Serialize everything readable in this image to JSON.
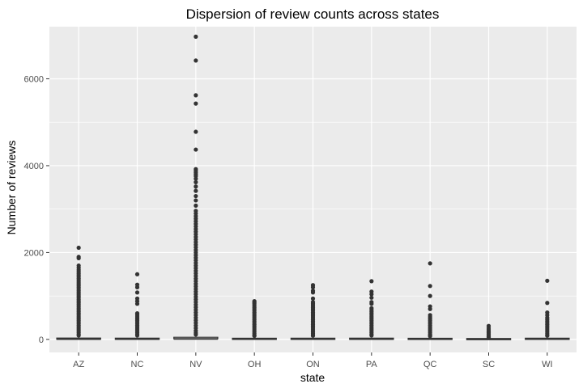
{
  "chart_data": {
    "type": "boxplot",
    "title": "Dispersion of review counts across states",
    "xlabel": "state",
    "ylabel": "Number of reviews",
    "categories": [
      "AZ",
      "NC",
      "NV",
      "OH",
      "ON",
      "PA",
      "QC",
      "SC",
      "WI"
    ],
    "ylim": [
      -300,
      7200
    ],
    "yticks": [
      0,
      2000,
      4000,
      6000
    ],
    "y_tick_labels": [
      "0",
      "2000",
      "4000",
      "6000"
    ],
    "grid": true,
    "legend": "none",
    "colors": {
      "panel_background": "#ebebeb",
      "grid_major": "#ffffff",
      "points": "#333333",
      "box_outline": "#333333"
    },
    "boxes": [
      {
        "state": "AZ",
        "q1": 3,
        "median": 8,
        "q3": 22,
        "outliers": [
          2110,
          1900,
          1870,
          1700,
          1650,
          1600,
          1560,
          1520,
          1480,
          1440,
          1400,
          1360,
          1320,
          1280,
          1240,
          1200,
          1160,
          1120,
          1080,
          1040,
          1000,
          960,
          920,
          880,
          840,
          800,
          760,
          720,
          680,
          640,
          600,
          560,
          520,
          480,
          440,
          400,
          360,
          320,
          280,
          240,
          200,
          160,
          120,
          90
        ]
      },
      {
        "state": "NC",
        "q1": 3,
        "median": 7,
        "q3": 20,
        "outliers": [
          1500,
          1260,
          1200,
          1080,
          940,
          880,
          820,
          600,
          560,
          520,
          480,
          440,
          400,
          360,
          320,
          280,
          240,
          200,
          160,
          120,
          90
        ]
      },
      {
        "state": "NV",
        "q1": 4,
        "median": 12,
        "q3": 40,
        "outliers": [
          6970,
          6420,
          5620,
          5430,
          4780,
          4370,
          3920,
          3880,
          3840,
          3800,
          3760,
          3700,
          3620,
          3520,
          3420,
          3300,
          3200,
          3080,
          2960,
          2900,
          2840,
          2780,
          2720,
          2660,
          2600,
          2540,
          2480,
          2420,
          2360,
          2300,
          2240,
          2180,
          2120,
          2060,
          2000,
          1940,
          1880,
          1820,
          1760,
          1700,
          1640,
          1580,
          1520,
          1460,
          1400,
          1340,
          1280,
          1220,
          1160,
          1100,
          1040,
          980,
          920,
          860,
          800,
          740,
          680,
          620,
          560,
          500,
          440,
          380,
          320,
          260,
          200,
          150,
          110
        ]
      },
      {
        "state": "OH",
        "q1": 3,
        "median": 6,
        "q3": 18,
        "outliers": [
          880,
          850,
          820,
          780,
          740,
          700,
          660,
          620,
          580,
          540,
          500,
          460,
          420,
          380,
          340,
          300,
          260,
          220,
          180,
          140,
          100,
          80
        ]
      },
      {
        "state": "ON",
        "q1": 3,
        "median": 7,
        "q3": 19,
        "outliers": [
          1250,
          1200,
          1120,
          1080,
          940,
          860,
          820,
          780,
          740,
          700,
          660,
          620,
          580,
          540,
          500,
          460,
          420,
          380,
          340,
          300,
          260,
          220,
          180,
          140,
          100,
          85
        ]
      },
      {
        "state": "PA",
        "q1": 3,
        "median": 7,
        "q3": 20,
        "outliers": [
          1340,
          1100,
          1040,
          960,
          860,
          820,
          720,
          680,
          640,
          600,
          560,
          520,
          480,
          440,
          400,
          360,
          320,
          280,
          240,
          200,
          160,
          120,
          90
        ]
      },
      {
        "state": "QC",
        "q1": 3,
        "median": 6,
        "q3": 17,
        "outliers": [
          1750,
          1230,
          1000,
          760,
          700,
          560,
          520,
          480,
          440,
          400,
          360,
          320,
          280,
          240,
          200,
          160,
          120,
          90,
          75
        ]
      },
      {
        "state": "SC",
        "q1": 3,
        "median": 5,
        "q3": 12,
        "outliers": [
          310,
          260,
          220,
          180,
          150,
          120,
          90,
          60,
          40
        ]
      },
      {
        "state": "WI",
        "q1": 3,
        "median": 7,
        "q3": 19,
        "outliers": [
          1350,
          840,
          620,
          560,
          500,
          460,
          420,
          380,
          340,
          300,
          260,
          220,
          180,
          140,
          100,
          85
        ]
      }
    ]
  }
}
